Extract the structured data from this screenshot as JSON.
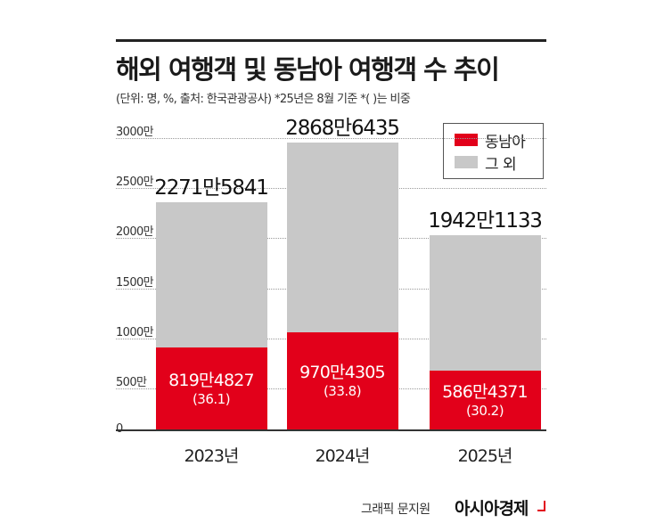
{
  "header": {
    "title": "해외 여행객 및 동남아 여행객 수 추이",
    "subtitle": "(단위: 명, %, 출처: 한국관광공사)  *25년은 8월 기준  *( )는 비중"
  },
  "legend": {
    "items": [
      {
        "label": "동남아",
        "color": "#e2001a"
      },
      {
        "label": "그 외",
        "color": "#c8c8c8"
      }
    ]
  },
  "footer": {
    "credit": "그래픽 문지원",
    "brand": "아시아경제"
  },
  "chart_data": {
    "type": "bar",
    "stacked": true,
    "categories": [
      "2023년",
      "2024년",
      "2025년"
    ],
    "series": [
      {
        "name": "동남아",
        "values": [
          8194827,
          9704305,
          5864371
        ],
        "labels": [
          "819만4827",
          "970만4305",
          "586만4371"
        ],
        "shares": [
          "(36.1)",
          "(33.8)",
          "(30.2)"
        ],
        "color": "#e2001a"
      },
      {
        "name": "그 외",
        "values": [
          14521014,
          18982130,
          13556762
        ],
        "color": "#c8c8c8"
      }
    ],
    "totals": [
      22715841,
      28686435,
      19421133
    ],
    "total_labels": [
      "2271만5841",
      "2868만6435",
      "1942만1133"
    ],
    "ylim": [
      0,
      30000000
    ],
    "yticks": [
      0,
      5000000,
      10000000,
      15000000,
      20000000,
      25000000,
      30000000
    ],
    "ytick_labels": [
      "0",
      "500만",
      "1000만",
      "1500만",
      "2000만",
      "2500만",
      "3000만"
    ],
    "grid": true,
    "legend_position": "top-right"
  }
}
